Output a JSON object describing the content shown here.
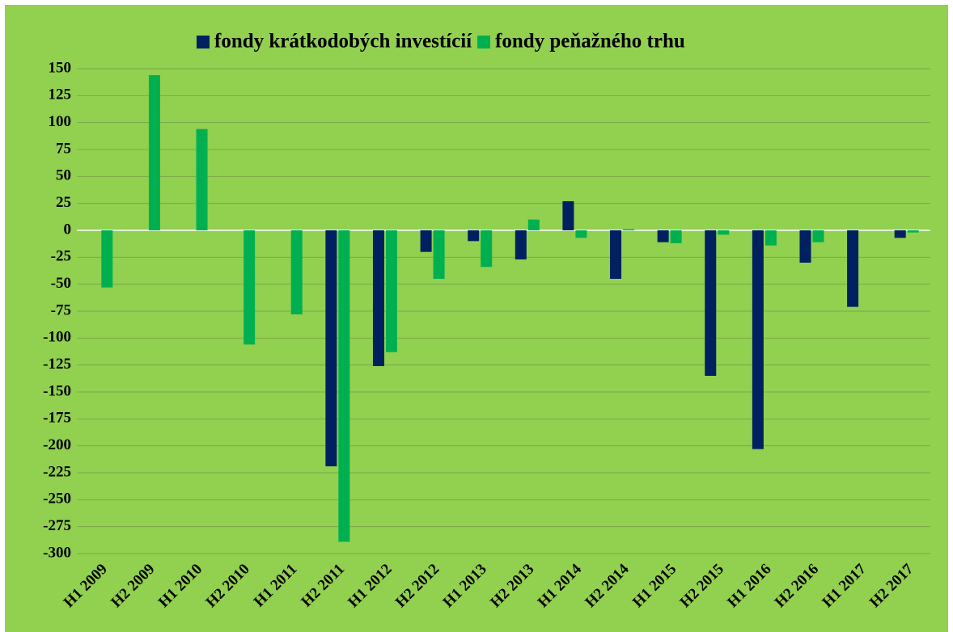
{
  "chart_data": {
    "type": "bar",
    "categories": [
      "H1 2009",
      "H2 2009",
      "H1 2010",
      "H2 2010",
      "H1 2011",
      "H2 2011",
      "H1 2012",
      "H2 2012",
      "H1 2013",
      "H2 2013",
      "H1 2014",
      "H2 2014",
      "H1 2015",
      "H2 2015",
      "H1 2016",
      "H2 2016",
      "H1 2017",
      "H2 2017"
    ],
    "series": [
      {
        "name": "fondy krátkodobých investícií",
        "color": "#002060",
        "values": [
          null,
          null,
          null,
          null,
          null,
          -219,
          -126,
          -20,
          -10,
          -27,
          27,
          -45,
          -11,
          -135,
          -203,
          -30,
          -71,
          -7
        ]
      },
      {
        "name": "fondy peňažného trhu",
        "color": "#00b050",
        "values": [
          -53,
          144,
          94,
          -106,
          -78,
          -289,
          -113,
          -45,
          -34,
          10,
          -7,
          1,
          -12,
          -4,
          -14,
          -11,
          null,
          -2
        ]
      }
    ],
    "ylim": [
      -300,
      150
    ],
    "yticks": [
      -300,
      -275,
      -250,
      -225,
      -200,
      -175,
      -150,
      -125,
      -100,
      -75,
      -50,
      -25,
      0,
      25,
      50,
      75,
      100,
      125,
      150
    ],
    "grid": true,
    "legend": "top"
  }
}
